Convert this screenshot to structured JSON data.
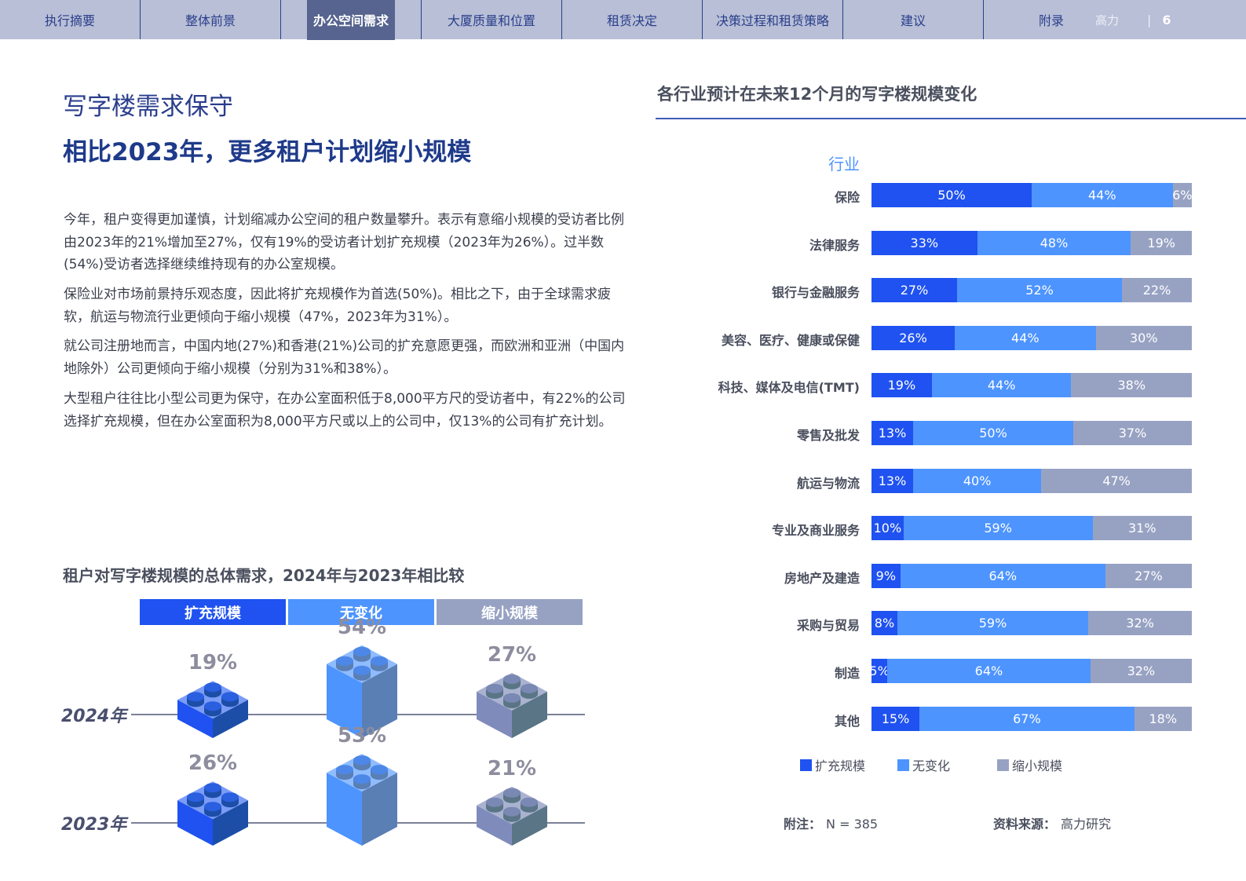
{
  "nav": {
    "tabs": [
      "执行摘要",
      "整体前景",
      "办公空间需求",
      "大厦质量和位置",
      "租赁决定",
      "决策过程和租赁策略",
      "建议",
      "附录"
    ],
    "active": 2,
    "brand": "高力",
    "separator": "|",
    "page_number": "6"
  },
  "title": "写字楼需求保守",
  "subtitle": "相比2023年，更多租户计划缩小规模",
  "paragraphs": [
    "今年，租户变得更加谨慎，计划缩减办公空间的租户数量攀升。表示有意缩小规模的受访者比例由2023年的21%增加至27%，仅有19%的受访者计划扩充规模（2023年为26%）。过半数(54%)受访者选择继续维持现有的办公室规模。",
    "保险业对市场前景持乐观态度，因此将扩充规模作为首选(50%)。相比之下，由于全球需求疲软，航运与物流行业更倾向于缩小规模（47%，2023年为31%）。",
    "就公司注册地而言，中国内地(27%)和香港(21%)公司的扩充意愿更强，而欧洲和亚洲（中国内地除外）公司更倾向于缩小规模（分别为31%和38%）。",
    "大型租户往往比小型公司更为保守，在办公室面积低于8,000平方尺的受访者中，有22%的公司选择扩充规模，但在办公室面积为8,000平方尺或以上的公司中，仅13%的公司有扩充计划。"
  ],
  "colors": {
    "expand": "#1f52f0",
    "nochange": "#4d94ff",
    "shrink": "#97a2c3"
  },
  "chart_data": [
    {
      "type": "pictogram",
      "title": "租户对写字楼规模的总体需求，2024年与2023年相比较",
      "categories": [
        "扩充规模",
        "无变化",
        "缩小规模"
      ],
      "series": [
        {
          "name": "2024年",
          "values": [
            19,
            54,
            27
          ],
          "labels": [
            "19%",
            "54%",
            "27%"
          ]
        },
        {
          "name": "2023年",
          "values": [
            26,
            53,
            21
          ],
          "labels": [
            "26%",
            "53%",
            "21%"
          ]
        }
      ]
    },
    {
      "type": "bar",
      "orientation": "horizontal",
      "stacked": true,
      "title": "各行业预计在未来12个月的写字楼规模变化",
      "ylabel": "行业",
      "categories": [
        "保险",
        "法律服务",
        "银行与金融服务",
        "美容、医疗、健康或保健",
        "科技、媒体及电信(TMT)",
        "零售及批发",
        "航运与物流",
        "专业及商业服务",
        "房地产及建造",
        "采购与贸易",
        "制造",
        "其他"
      ],
      "series": [
        {
          "name": "扩充规模",
          "values": [
            50,
            33,
            27,
            26,
            19,
            13,
            13,
            10,
            9,
            8,
            5,
            15
          ]
        },
        {
          "name": "无变化",
          "values": [
            44,
            48,
            52,
            44,
            44,
            50,
            40,
            59,
            64,
            59,
            64,
            67
          ]
        },
        {
          "name": "缩小规模",
          "values": [
            6,
            19,
            22,
            30,
            38,
            37,
            47,
            31,
            27,
            32,
            32,
            18
          ]
        }
      ],
      "legend_position": "bottom"
    }
  ],
  "footer": {
    "note_label": "附注：",
    "note": "N = 385",
    "source_label": "资料来源：",
    "source": "高力研究"
  }
}
